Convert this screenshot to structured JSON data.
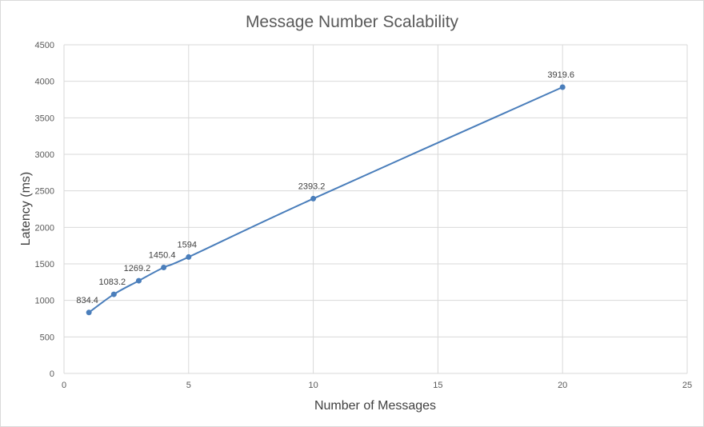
{
  "chart_data": {
    "type": "scatter",
    "title": "Message Number Scalability",
    "xlabel": "Number of Messages",
    "ylabel": "Latency (ms)",
    "xlim": [
      0,
      25
    ],
    "ylim": [
      0,
      4500
    ],
    "x_ticks": [
      0,
      5,
      10,
      15,
      20,
      25
    ],
    "y_ticks": [
      0,
      500,
      1000,
      1500,
      2000,
      2500,
      3000,
      3500,
      4000,
      4500
    ],
    "grid": true,
    "series": [
      {
        "color": "#4a7ebb",
        "marker": "circle",
        "line": "smooth",
        "x": [
          1,
          2,
          3,
          4,
          5,
          10,
          20
        ],
        "y": [
          834.4,
          1083.2,
          1269.2,
          1450.4,
          1594,
          2393.2,
          3919.6
        ],
        "labels": [
          "834.4",
          "1083.2",
          "1269.2",
          "1450.4",
          "1594",
          "2393.2",
          "3919.6"
        ]
      }
    ]
  }
}
